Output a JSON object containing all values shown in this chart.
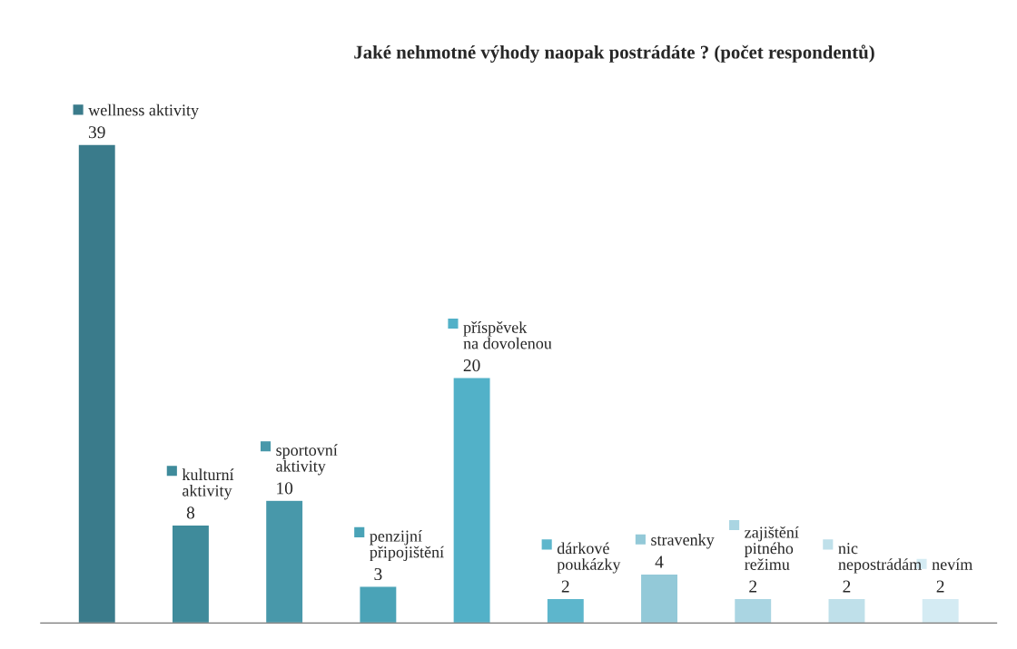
{
  "chart_data": {
    "type": "bar",
    "title": "Jaké nehmotné výhody naopak postrádáte ? (počet respondentů)",
    "categories": [
      "wellness aktivity",
      "kulturní\naktivity",
      "sportovní\naktivity",
      "penzijní\npřipojištění",
      "příspěvek\nna dovolenou",
      "dárkové\npoukázky",
      "stravenky",
      "zajištění\npitného\nrežimu",
      "nic\nnepostrádám",
      "nevím"
    ],
    "values": [
      39,
      8,
      10,
      3,
      20,
      2,
      4,
      2,
      2,
      2
    ],
    "colors": [
      "#3a7b8b",
      "#3f8b9b",
      "#4898aa",
      "#4aa3b7",
      "#52b1c8",
      "#5db6cc",
      "#93c9d8",
      "#aad5e2",
      "#bfe0ea",
      "#d4ebf3"
    ],
    "data_labels": true
  }
}
